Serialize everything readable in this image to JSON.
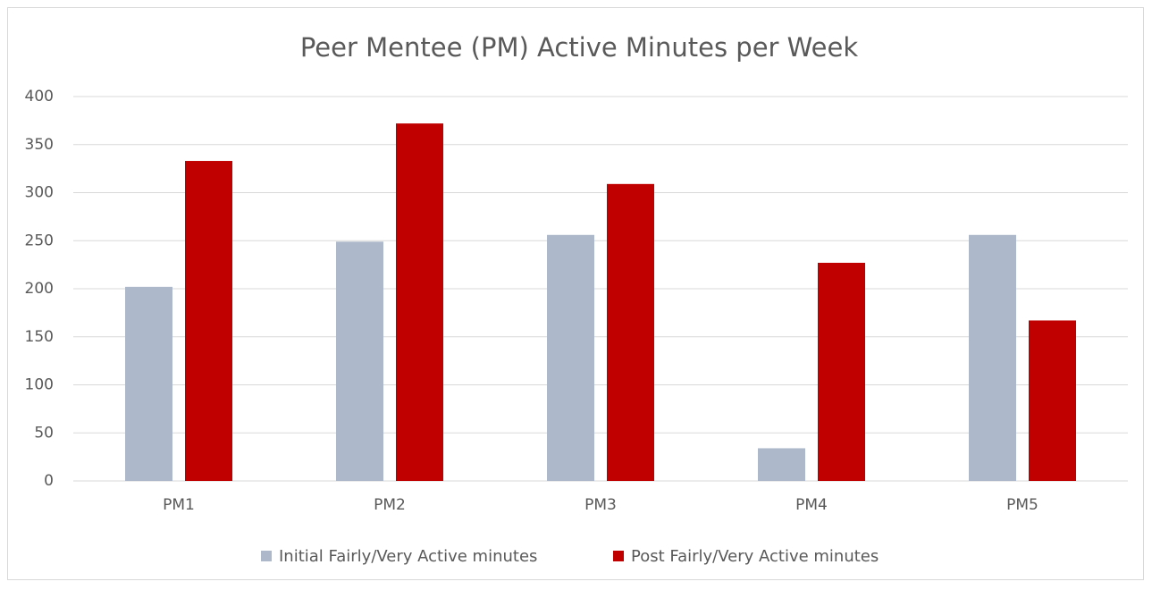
{
  "chart_data": {
    "type": "bar",
    "title": "Peer Mentee (PM) Active Minutes per Week",
    "categories": [
      "PM1",
      "PM2",
      "PM3",
      "PM4",
      "PM5"
    ],
    "series": [
      {
        "name": "Initial Fairly/Very Active minutes",
        "color": "#adb9ca",
        "values": [
          202,
          249,
          256,
          34,
          256
        ]
      },
      {
        "name": "Post Fairly/Very Active minutes",
        "color": "#c00000",
        "values": [
          333,
          372,
          309,
          227,
          167
        ]
      }
    ],
    "ylim": [
      0,
      400
    ],
    "yticks": [
      0,
      50,
      100,
      150,
      200,
      250,
      300,
      350,
      400
    ],
    "grid": true,
    "legend": "bottom"
  }
}
